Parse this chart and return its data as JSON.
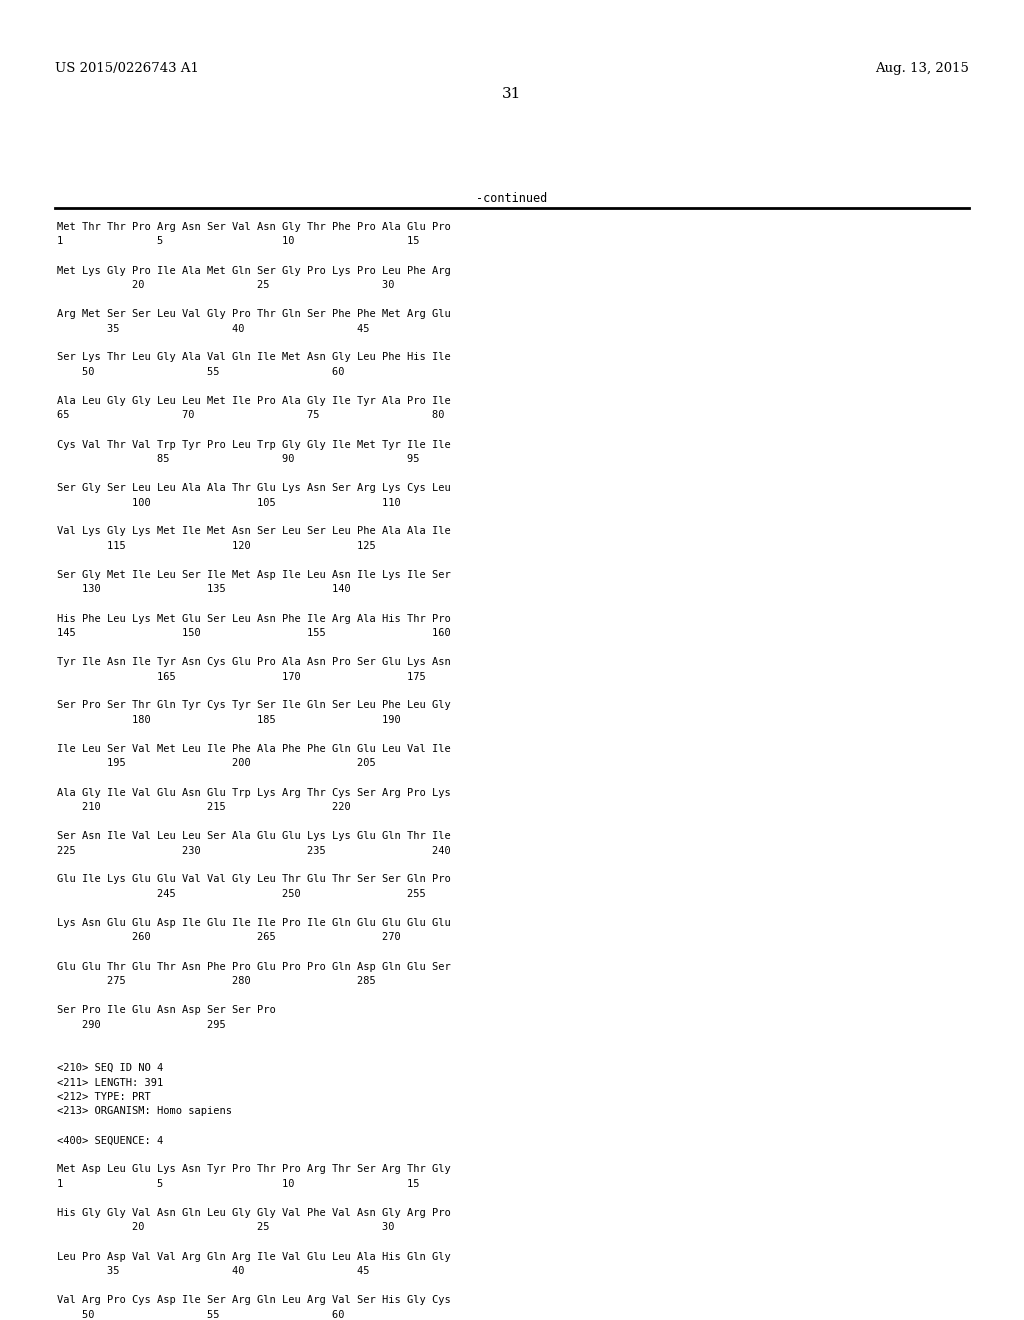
{
  "header_left": "US 2015/0226743 A1",
  "header_right": "Aug. 13, 2015",
  "page_number": "31",
  "continued_label": "-continued",
  "background_color": "#ffffff",
  "text_color": "#000000",
  "font_size": 7.5,
  "header_font_size": 9.5,
  "page_num_font_size": 11,
  "content": [
    "Met Thr Thr Pro Arg Asn Ser Val Asn Gly Thr Phe Pro Ala Glu Pro",
    "1               5                   10                  15",
    "",
    "Met Lys Gly Pro Ile Ala Met Gln Ser Gly Pro Lys Pro Leu Phe Arg",
    "            20                  25                  30",
    "",
    "Arg Met Ser Ser Leu Val Gly Pro Thr Gln Ser Phe Phe Met Arg Glu",
    "        35                  40                  45",
    "",
    "Ser Lys Thr Leu Gly Ala Val Gln Ile Met Asn Gly Leu Phe His Ile",
    "    50                  55                  60",
    "",
    "Ala Leu Gly Gly Leu Leu Met Ile Pro Ala Gly Ile Tyr Ala Pro Ile",
    "65                  70                  75                  80",
    "",
    "Cys Val Thr Val Trp Tyr Pro Leu Trp Gly Gly Ile Met Tyr Ile Ile",
    "                85                  90                  95",
    "",
    "Ser Gly Ser Leu Leu Ala Ala Thr Glu Lys Asn Ser Arg Lys Cys Leu",
    "            100                 105                 110",
    "",
    "Val Lys Gly Lys Met Ile Met Asn Ser Leu Ser Leu Phe Ala Ala Ile",
    "        115                 120                 125",
    "",
    "Ser Gly Met Ile Leu Ser Ile Met Asp Ile Leu Asn Ile Lys Ile Ser",
    "    130                 135                 140",
    "",
    "His Phe Leu Lys Met Glu Ser Leu Asn Phe Ile Arg Ala His Thr Pro",
    "145                 150                 155                 160",
    "",
    "Tyr Ile Asn Ile Tyr Asn Cys Glu Pro Ala Asn Pro Ser Glu Lys Asn",
    "                165                 170                 175",
    "",
    "Ser Pro Ser Thr Gln Tyr Cys Tyr Ser Ile Gln Ser Leu Phe Leu Gly",
    "            180                 185                 190",
    "",
    "Ile Leu Ser Val Met Leu Ile Phe Ala Phe Phe Gln Glu Leu Val Ile",
    "        195                 200                 205",
    "",
    "Ala Gly Ile Val Glu Asn Glu Trp Lys Arg Thr Cys Ser Arg Pro Lys",
    "    210                 215                 220",
    "",
    "Ser Asn Ile Val Leu Leu Ser Ala Glu Glu Lys Lys Glu Gln Thr Ile",
    "225                 230                 235                 240",
    "",
    "Glu Ile Lys Glu Glu Val Val Gly Leu Thr Glu Thr Ser Ser Gln Pro",
    "                245                 250                 255",
    "",
    "Lys Asn Glu Glu Asp Ile Glu Ile Ile Pro Ile Gln Glu Glu Glu Glu",
    "            260                 265                 270",
    "",
    "Glu Glu Thr Glu Thr Asn Phe Pro Glu Pro Pro Gln Asp Gln Glu Ser",
    "        275                 280                 285",
    "",
    "Ser Pro Ile Glu Asn Asp Ser Ser Pro",
    "    290                 295",
    "",
    "",
    "<210> SEQ ID NO 4",
    "<211> LENGTH: 391",
    "<212> TYPE: PRT",
    "<213> ORGANISM: Homo sapiens",
    "",
    "<400> SEQUENCE: 4",
    "",
    "Met Asp Leu Glu Lys Asn Tyr Pro Thr Pro Arg Thr Ser Arg Thr Gly",
    "1               5                   10                  15",
    "",
    "His Gly Gly Val Asn Gln Leu Gly Gly Val Phe Val Asn Gly Arg Pro",
    "            20                  25                  30",
    "",
    "Leu Pro Asp Val Val Arg Gln Arg Ile Val Glu Leu Ala His Gln Gly",
    "        35                  40                  45",
    "",
    "Val Arg Pro Cys Asp Ile Ser Arg Gln Leu Arg Val Ser His Gly Cys",
    "    50                  55                  60"
  ]
}
